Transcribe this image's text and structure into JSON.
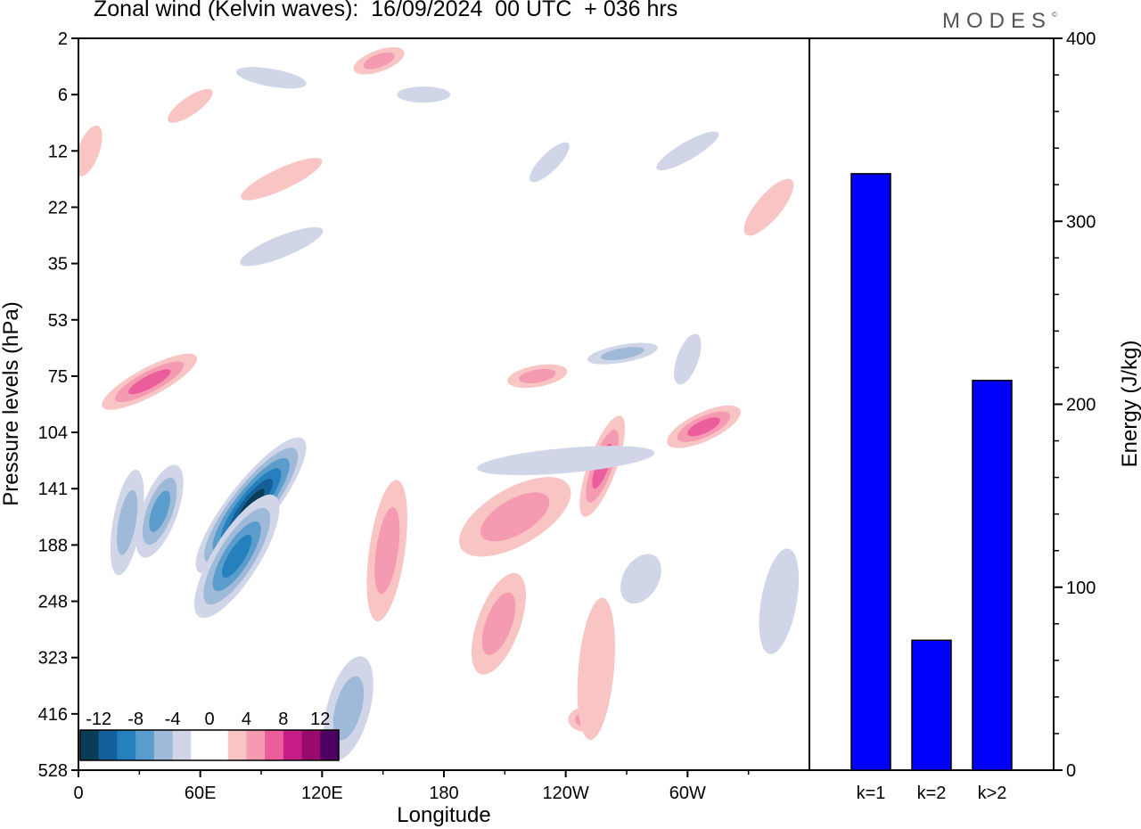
{
  "title": "Zonal wind (Kelvin waves):  16/09/2024  00 UTC  + 036 hrs",
  "logo": "MODES",
  "logo_mark": "©",
  "colors": {
    "neg": [
      "#0a3b57",
      "#14609a",
      "#2580bd",
      "#5a9ccb",
      "#9fb9d9",
      "#d1d5e8"
    ],
    "zero": "#ffffff",
    "pos": [
      "#f8c4c4",
      "#f59bb1",
      "#ec5d9c",
      "#c81c86",
      "#980a6c",
      "#4d0060"
    ],
    "bar": "#0000ff"
  },
  "chart_data": [
    {
      "type": "heatmap",
      "title": "Zonal wind (Kelvin waves):  16/09/2024  00 UTC  + 036 hrs",
      "xlabel": "Longitude",
      "ylabel": "Pressure levels (hPa)",
      "x_ticks": [
        "0",
        "60E",
        "120E",
        "180",
        "120W",
        "60W"
      ],
      "y_ticks": [
        "2",
        "6",
        "12",
        "22",
        "35",
        "53",
        "75",
        "104",
        "141",
        "188",
        "248",
        "323",
        "416",
        "528"
      ],
      "colorbar_labels": [
        "-12",
        "-8",
        "-4",
        "0",
        "4",
        "8",
        "12"
      ],
      "colorbar_levels": [
        -12,
        -10,
        -8,
        -6,
        -4,
        -2,
        0,
        2,
        4,
        6,
        8,
        10,
        12
      ],
      "features": [
        {
          "lon": 85,
          "level": "141",
          "value": -12
        },
        {
          "lon": 78,
          "level": "188",
          "value": -8
        },
        {
          "lon": 26,
          "level": "141",
          "value": -6
        },
        {
          "lon": 133,
          "level": "416",
          "value": -4
        },
        {
          "lon": 35,
          "level": "75",
          "value": 6
        },
        {
          "lon": 152,
          "level": "188",
          "value": 4
        },
        {
          "lon": 218,
          "level": "141",
          "value": 4
        },
        {
          "lon": 209,
          "level": "248",
          "value": 4
        },
        {
          "lon": 263,
          "level": "104",
          "value": 6
        },
        {
          "lon": 307,
          "level": "104",
          "value": 6
        },
        {
          "lon": 250,
          "level": "416",
          "value": 3
        },
        {
          "lon": 144,
          "level": "2",
          "value": 4
        },
        {
          "lon": 225,
          "level": "75",
          "value": 4
        },
        {
          "lon": 265,
          "level": "75",
          "value": -4
        },
        {
          "lon": 92,
          "level": "2",
          "value": -2
        }
      ]
    },
    {
      "type": "bar",
      "categories": [
        "k=1",
        "k=2",
        "k>2"
      ],
      "values": [
        326,
        71,
        213
      ],
      "ylabel": "Energy (J/kg)",
      "ylim": [
        0,
        400
      ],
      "y_ticks": [
        "0",
        "100",
        "200",
        "300",
        "400"
      ]
    }
  ]
}
